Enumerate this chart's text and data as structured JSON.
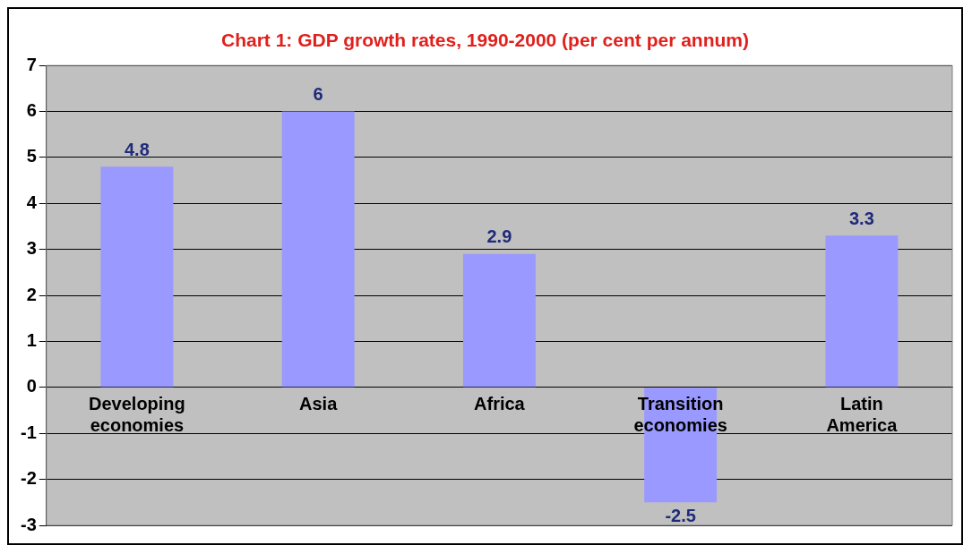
{
  "chart_data": {
    "type": "bar",
    "title": "Chart 1: GDP growth rates, 1990-2000 (per cent per annum)",
    "categories": [
      "Developing economies",
      "Asia",
      "Africa",
      "Transition economies",
      "Latin America"
    ],
    "values": [
      4.8,
      6,
      2.9,
      -2.5,
      3.3
    ],
    "color": "#9999ff",
    "ylim": [
      -3,
      7
    ],
    "yticks": [
      -3,
      -2,
      -1,
      0,
      1,
      2,
      3,
      4,
      5,
      6,
      7
    ],
    "grid": "y",
    "data_labels": true
  }
}
